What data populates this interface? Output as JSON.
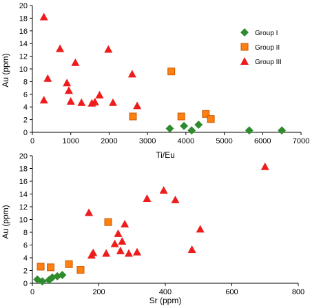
{
  "colors": {
    "group1": "#2e8b2e",
    "group2": "#ff7f10",
    "group3": "#ee1c1c",
    "group2_stroke": "#c85a00"
  },
  "legend": {
    "placement": "top-right",
    "entries": [
      {
        "name": "Group I",
        "marker": "diamond"
      },
      {
        "name": "Group II",
        "marker": "square"
      },
      {
        "name": "Group III",
        "marker": "triangle"
      }
    ]
  },
  "chart_data": [
    {
      "type": "scatter",
      "xlabel": "Ti/Eu",
      "ylabel": "Au (ppm)",
      "xlim": [
        0,
        7000
      ],
      "ylim": [
        0,
        20
      ],
      "x_ticks": [
        0,
        1000,
        2000,
        3000,
        4000,
        5000,
        6000,
        7000
      ],
      "y_ticks": [
        0,
        2,
        4,
        6,
        8,
        10,
        12,
        14,
        16,
        18,
        20
      ],
      "grid": false,
      "series": [
        {
          "name": "Group I",
          "marker": "diamond",
          "points": [
            [
              3580,
              0.6
            ],
            [
              3950,
              1.0
            ],
            [
              4150,
              0.3
            ],
            [
              4330,
              1.2
            ],
            [
              5650,
              0.3
            ],
            [
              6500,
              0.3
            ]
          ]
        },
        {
          "name": "Group II",
          "marker": "square",
          "points": [
            [
              2620,
              2.5
            ],
            [
              3620,
              9.6
            ],
            [
              3880,
              2.5
            ],
            [
              4520,
              2.9
            ],
            [
              4650,
              2.1
            ]
          ]
        },
        {
          "name": "Group III",
          "marker": "triangle",
          "points": [
            [
              300,
              18.2
            ],
            [
              300,
              5.1
            ],
            [
              400,
              8.5
            ],
            [
              720,
              13.2
            ],
            [
              900,
              7.8
            ],
            [
              950,
              6.6
            ],
            [
              1000,
              4.9
            ],
            [
              1120,
              11.0
            ],
            [
              1280,
              4.7
            ],
            [
              1550,
              4.6
            ],
            [
              1630,
              4.8
            ],
            [
              1750,
              5.9
            ],
            [
              1980,
              13.1
            ],
            [
              2100,
              4.7
            ],
            [
              2600,
              9.2
            ],
            [
              2730,
              4.2
            ]
          ]
        }
      ]
    },
    {
      "type": "scatter",
      "xlabel": "Sr (ppm)",
      "ylabel": "Au (ppm)",
      "xlim": [
        0,
        800
      ],
      "ylim": [
        0,
        20
      ],
      "x_ticks": [
        0,
        200,
        400,
        600,
        800
      ],
      "y_ticks": [
        0,
        2,
        4,
        6,
        8,
        10,
        12,
        14,
        16,
        18,
        20
      ],
      "grid": false,
      "series": [
        {
          "name": "Group I",
          "marker": "diamond",
          "points": [
            [
              15,
              0.6
            ],
            [
              30,
              0.3
            ],
            [
              50,
              0.5
            ],
            [
              60,
              0.9
            ],
            [
              75,
              1.1
            ],
            [
              90,
              1.3
            ]
          ]
        },
        {
          "name": "Group II",
          "marker": "square",
          "points": [
            [
              25,
              2.6
            ],
            [
              55,
              2.5
            ],
            [
              110,
              3.0
            ],
            [
              145,
              2.1
            ],
            [
              228,
              9.6
            ]
          ]
        },
        {
          "name": "Group III",
          "marker": "triangle",
          "points": [
            [
              170,
              11.1
            ],
            [
              178,
              4.4
            ],
            [
              183,
              4.8
            ],
            [
              222,
              4.7
            ],
            [
              248,
              6.2
            ],
            [
              258,
              7.8
            ],
            [
              265,
              5.1
            ],
            [
              270,
              6.6
            ],
            [
              278,
              9.3
            ],
            [
              290,
              4.7
            ],
            [
              315,
              4.9
            ],
            [
              345,
              13.3
            ],
            [
              395,
              14.6
            ],
            [
              430,
              13.1
            ],
            [
              480,
              5.3
            ],
            [
              505,
              8.5
            ],
            [
              700,
              18.3
            ]
          ]
        }
      ]
    }
  ]
}
